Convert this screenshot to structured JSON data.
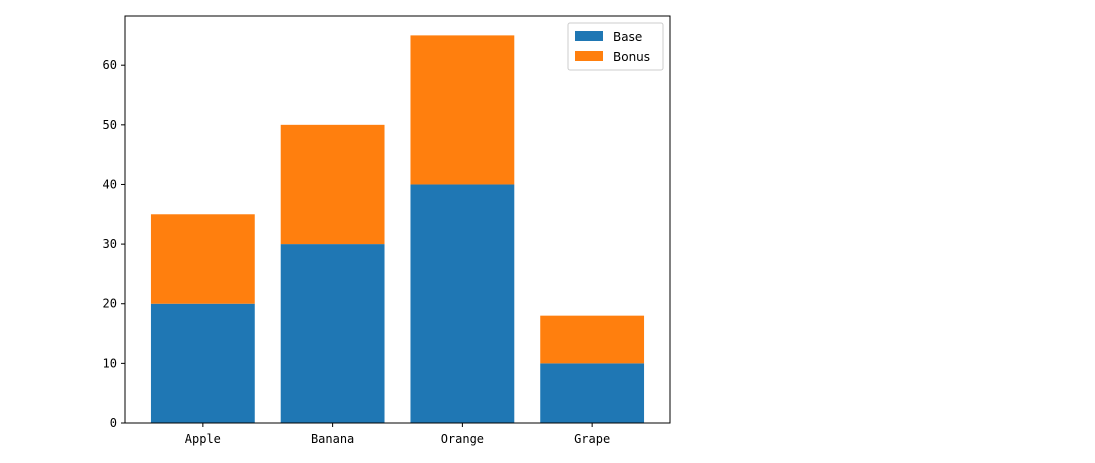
{
  "chart_data": {
    "type": "bar",
    "stacked": true,
    "categories": [
      "Apple",
      "Banana",
      "Orange",
      "Grape"
    ],
    "series": [
      {
        "name": "Base",
        "values": [
          20,
          30,
          40,
          10
        ],
        "color": "#1f77b4"
      },
      {
        "name": "Bonus",
        "values": [
          15,
          20,
          25,
          8
        ],
        "color": "#ff7f0e"
      }
    ],
    "title": "",
    "xlabel": "",
    "ylabel": "",
    "ylim": [
      0,
      68.25
    ],
    "yticks": [
      0,
      10,
      20,
      30,
      40,
      50,
      60
    ],
    "grid": false,
    "legend": "top-right"
  }
}
